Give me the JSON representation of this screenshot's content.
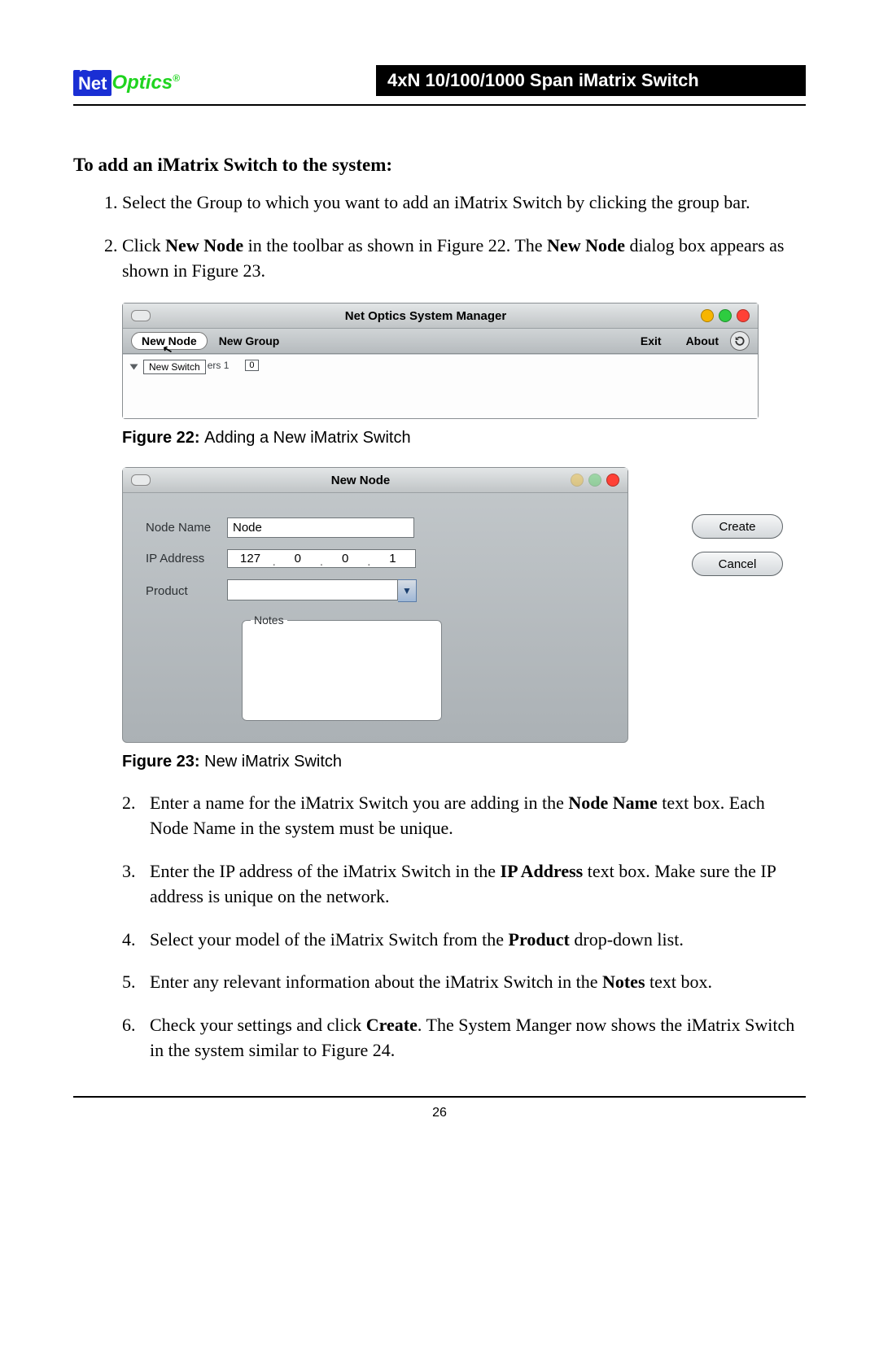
{
  "header": {
    "logo_net": "Net",
    "logo_optics": "Optics",
    "logo_reg": "®",
    "title_bar": "4xN 10/100/1000 Span iMatrix Switch"
  },
  "section_heading": "To add an iMatrix Switch to the system:",
  "steps_top": [
    "Select the Group to which you want to add an iMatrix Switch by clicking the group bar.",
    "Click <b>New Node</b> in the toolbar as shown in Figure 22. The <b>New Node</b> dialog box appears as shown in Figure 23."
  ],
  "fig22": {
    "title": "Net Optics System Manager",
    "new_node": "New Node",
    "new_group": "New Group",
    "exit": "Exit",
    "about": "About",
    "list_item": "New Switch",
    "trail": "ers 1",
    "zero": "0",
    "caption_label": "Figure 22: ",
    "caption_text": "Adding a New iMatrix Switch"
  },
  "fig23": {
    "title": "New Node",
    "node_name_label": "Node Name",
    "node_name_value": "Node",
    "ip_label": "IP Address",
    "ip_octets": [
      "127",
      "0",
      "0",
      "1"
    ],
    "product_label": "Product",
    "notes_label": "Notes",
    "create": "Create",
    "cancel": "Cancel",
    "caption_label": "Figure 23: ",
    "caption_text": "New iMatrix Switch"
  },
  "steps_bottom": [
    {
      "n": "2.",
      "html": "Enter a name for the iMatrix Switch you are adding in the <b>Node Name</b> text box. Each Node Name in the system must be unique."
    },
    {
      "n": "3.",
      "html": "Enter the IP address of the iMatrix Switch in the <b>IP Address</b> text box. Make sure the IP address is unique on the network."
    },
    {
      "n": "4.",
      "html": "Select your model of the iMatrix Switch from the <b>Product</b> drop-down list."
    },
    {
      "n": "5.",
      "html": "Enter any relevant information about the iMatrix Switch in the <b>Notes</b> text box."
    },
    {
      "n": "6.",
      "html": "Check your settings and click <b>Create</b>. The System Manger now shows the iMatrix Switch in the system similar to Figure 24."
    }
  ],
  "page_number": "26"
}
